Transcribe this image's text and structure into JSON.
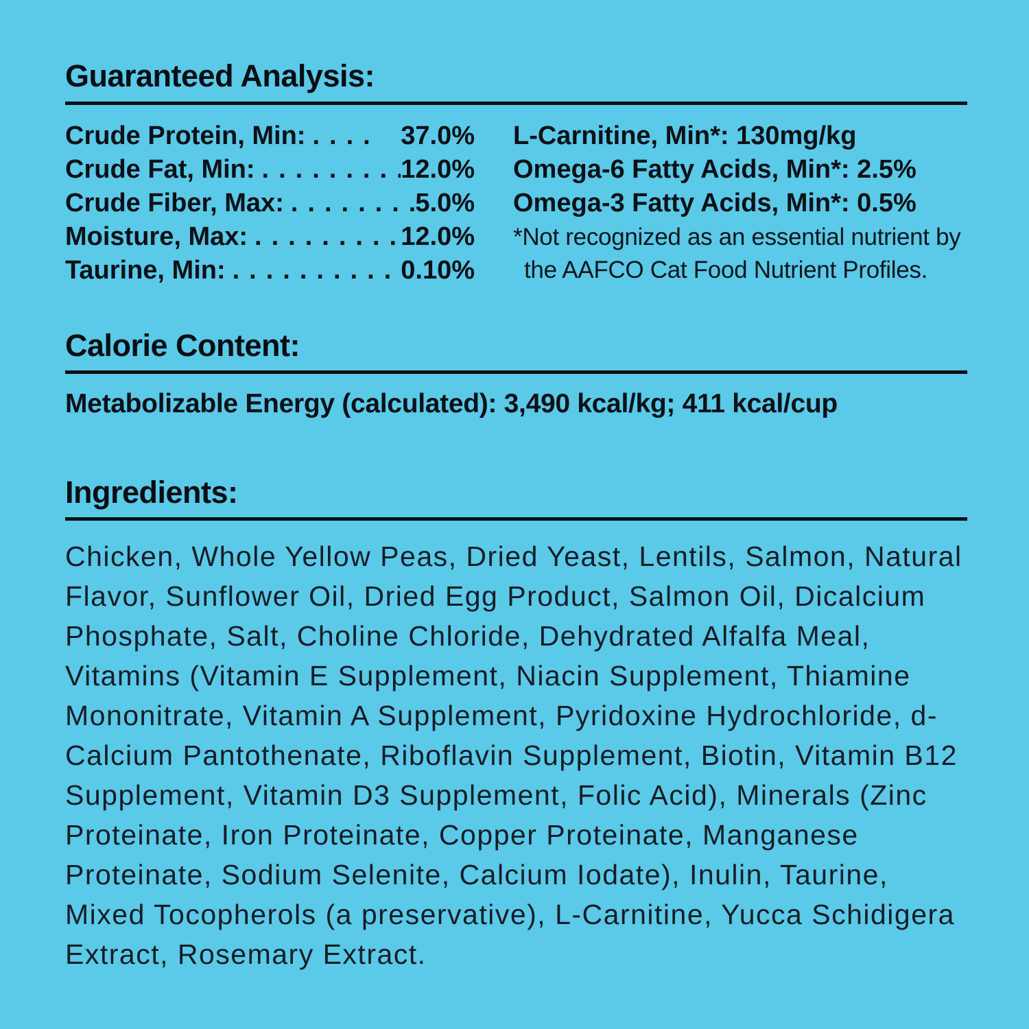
{
  "colors": {
    "background": "#5BC9E8",
    "text": "#0D1117"
  },
  "guaranteed_analysis": {
    "heading": "Guaranteed Analysis:",
    "rows": [
      {
        "label": "Crude Protein, Min:",
        "leader": "....",
        "value": "37.0%"
      },
      {
        "label": "Crude Fat, Min:",
        "leader": "..........",
        "value": "12.0%"
      },
      {
        "label": "Crude Fiber, Max:",
        "leader": "........",
        "value": "5.0%"
      },
      {
        "label": "Moisture, Max:",
        "leader": "..........",
        "value": "12.0%"
      },
      {
        "label": "Taurine, Min:",
        "leader": ".............",
        "value": "0.10%"
      }
    ],
    "extra_rows": [
      "L-Carnitine, Min*: 130mg/kg",
      "Omega-6 Fatty Acids, Min*: 2.5%",
      "Omega-3 Fatty Acids, Min*: 0.5%"
    ],
    "footnote": "*Not recognized as an essential nutrient by the AAFCO Cat Food Nutrient Profiles."
  },
  "calorie_content": {
    "heading": "Calorie Content:",
    "text": "Metabolizable Energy (calculated): 3,490 kcal/kg; 411 kcal/cup"
  },
  "ingredients": {
    "heading": "Ingredients:",
    "text": "Chicken, Whole Yellow Peas, Dried Yeast, Lentils, Salmon, Natural Flavor, Sunflower Oil, Dried Egg Product, Salmon Oil, Dicalcium Phosphate, Salt, Choline Chloride, Dehydrated Alfalfa Meal, Vitamins (Vitamin E Supplement, Niacin Supplement, Thiamine Mononitrate, Vitamin A Supplement, Pyridoxine Hydrochloride, d-Calcium Pantothenate, Riboflavin Supplement, Biotin, Vitamin B12 Supplement, Vitamin D3 Supplement, Folic Acid), Minerals (Zinc Proteinate, Iron Proteinate, Copper Proteinate, Manganese Proteinate, Sodium Selenite, Calcium Iodate), Inulin, Taurine, Mixed Tocopherols (a preservative), L-Carnitine, Yucca Schidigera Extract, Rosemary Extract."
  }
}
